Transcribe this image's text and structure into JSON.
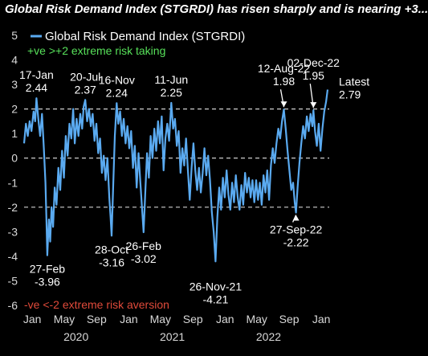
{
  "headline": "Global Risk Demand Index (STGRDI) has risen sharply and is nearing +3...",
  "legend_label": "Global Risk Demand Index (STGRDI)",
  "note_extreme_taking": "+ve >+2 extreme risk taking",
  "note_extreme_aversion": "-ve <-2 extreme risk aversion",
  "colors": {
    "series": "#5aaaf0",
    "background": "#000000",
    "note_taking": "#57e05a",
    "note_aversion": "#e04a3a"
  },
  "chart_data": {
    "type": "line",
    "title": "",
    "xlabel": "",
    "ylabel": "",
    "ylim": [
      -6,
      5
    ],
    "yticks": [
      5,
      4,
      3,
      2,
      1,
      0,
      -1,
      -2,
      -3,
      -4,
      -5,
      -6
    ],
    "xlim": [
      "2019-12-01",
      "2023-01-31"
    ],
    "xticks": [
      {
        "date": "2020-01-01",
        "label": "Jan"
      },
      {
        "date": "2020-05-01",
        "label": "May"
      },
      {
        "date": "2020-09-01",
        "label": "Sep"
      },
      {
        "date": "2021-01-01",
        "label": "Jan"
      },
      {
        "date": "2021-05-01",
        "label": "May"
      },
      {
        "date": "2021-09-01",
        "label": "Sep"
      },
      {
        "date": "2022-01-01",
        "label": "Jan"
      },
      {
        "date": "2022-05-01",
        "label": "May"
      },
      {
        "date": "2022-09-01",
        "label": "Sep"
      },
      {
        "date": "2023-01-01",
        "label": "Jan"
      }
    ],
    "year_labels": [
      {
        "date": "2020-06-15",
        "label": "2020"
      },
      {
        "date": "2021-06-15",
        "label": "2021"
      },
      {
        "date": "2022-06-15",
        "label": "2022"
      }
    ],
    "reference_lines": [
      2,
      0,
      -2
    ],
    "legend": "top-left",
    "grid": false,
    "series": [
      {
        "name": "Global Risk Demand Index (STGRDI)",
        "points": [
          [
            "2019-12-01",
            0.6
          ],
          [
            "2019-12-08",
            1.4
          ],
          [
            "2019-12-15",
            0.9
          ],
          [
            "2019-12-22",
            1.5
          ],
          [
            "2019-12-29",
            1.1
          ],
          [
            "2020-01-06",
            1.9
          ],
          [
            "2020-01-12",
            1.5
          ],
          [
            "2020-01-17",
            2.44
          ],
          [
            "2020-01-24",
            1.6
          ],
          [
            "2020-01-31",
            0.9
          ],
          [
            "2020-02-07",
            1.8
          ],
          [
            "2020-02-14",
            0.4
          ],
          [
            "2020-02-20",
            -1.0
          ],
          [
            "2020-02-24",
            -2.6
          ],
          [
            "2020-02-27",
            -3.96
          ],
          [
            "2020-03-04",
            -2.5
          ],
          [
            "2020-03-09",
            -3.4
          ],
          [
            "2020-03-14",
            -2.0
          ],
          [
            "2020-03-20",
            -2.8
          ],
          [
            "2020-03-26",
            -1.2
          ],
          [
            "2020-04-02",
            -1.9
          ],
          [
            "2020-04-09",
            -0.4
          ],
          [
            "2020-04-16",
            -1.3
          ],
          [
            "2020-04-23",
            0.3
          ],
          [
            "2020-04-30",
            -0.8
          ],
          [
            "2020-05-07",
            0.9
          ],
          [
            "2020-05-14",
            0.1
          ],
          [
            "2020-05-21",
            1.4
          ],
          [
            "2020-05-28",
            0.8
          ],
          [
            "2020-06-04",
            2.0
          ],
          [
            "2020-06-10",
            0.6
          ],
          [
            "2020-06-17",
            1.6
          ],
          [
            "2020-06-24",
            0.9
          ],
          [
            "2020-07-01",
            1.8
          ],
          [
            "2020-07-08",
            1.2
          ],
          [
            "2020-07-14",
            2.1
          ],
          [
            "2020-07-20",
            2.37
          ],
          [
            "2020-07-27",
            1.5
          ],
          [
            "2020-08-03",
            2.0
          ],
          [
            "2020-08-10",
            1.3
          ],
          [
            "2020-08-17",
            1.8
          ],
          [
            "2020-08-24",
            0.7
          ],
          [
            "2020-08-31",
            1.4
          ],
          [
            "2020-09-07",
            0.2
          ],
          [
            "2020-09-14",
            0.8
          ],
          [
            "2020-09-21",
            -0.6
          ],
          [
            "2020-09-28",
            0.1
          ],
          [
            "2020-10-05",
            -0.9
          ],
          [
            "2020-10-12",
            0.0
          ],
          [
            "2020-10-19",
            -1.6
          ],
          [
            "2020-10-24",
            -2.4
          ],
          [
            "2020-10-28",
            -3.16
          ],
          [
            "2020-11-03",
            -1.1
          ],
          [
            "2020-11-09",
            0.9
          ],
          [
            "2020-11-16",
            2.24
          ],
          [
            "2020-11-22",
            1.4
          ],
          [
            "2020-11-29",
            1.9
          ],
          [
            "2020-12-06",
            0.9
          ],
          [
            "2020-12-13",
            1.6
          ],
          [
            "2020-12-20",
            0.6
          ],
          [
            "2020-12-27",
            1.3
          ],
          [
            "2021-01-03",
            0.4
          ],
          [
            "2021-01-10",
            1.1
          ],
          [
            "2021-01-17",
            -0.4
          ],
          [
            "2021-01-24",
            0.5
          ],
          [
            "2021-01-31",
            -1.2
          ],
          [
            "2021-02-07",
            0.2
          ],
          [
            "2021-02-14",
            -1.0
          ],
          [
            "2021-02-20",
            -2.0
          ],
          [
            "2021-02-26",
            -3.02
          ],
          [
            "2021-03-04",
            -1.5
          ],
          [
            "2021-03-11",
            0.2
          ],
          [
            "2021-03-18",
            -0.8
          ],
          [
            "2021-03-25",
            0.9
          ],
          [
            "2021-04-01",
            0.0
          ],
          [
            "2021-04-08",
            1.2
          ],
          [
            "2021-04-15",
            0.3
          ],
          [
            "2021-04-22",
            1.5
          ],
          [
            "2021-04-29",
            0.6
          ],
          [
            "2021-05-06",
            1.7
          ],
          [
            "2021-05-13",
            -0.5
          ],
          [
            "2021-05-20",
            0.8
          ],
          [
            "2021-05-27",
            1.4
          ],
          [
            "2021-06-03",
            0.7
          ],
          [
            "2021-06-11",
            2.25
          ],
          [
            "2021-06-18",
            1.2
          ],
          [
            "2021-06-25",
            1.6
          ],
          [
            "2021-07-02",
            0.5
          ],
          [
            "2021-07-09",
            1.1
          ],
          [
            "2021-07-16",
            -0.6
          ],
          [
            "2021-07-23",
            0.4
          ],
          [
            "2021-07-30",
            -0.3
          ],
          [
            "2021-08-06",
            0.8
          ],
          [
            "2021-08-13",
            -0.5
          ],
          [
            "2021-08-20",
            -1.7
          ],
          [
            "2021-08-27",
            -0.4
          ],
          [
            "2021-09-03",
            0.6
          ],
          [
            "2021-09-10",
            -0.5
          ],
          [
            "2021-09-17",
            -1.3
          ],
          [
            "2021-09-24",
            -0.4
          ],
          [
            "2021-10-01",
            -1.4
          ],
          [
            "2021-10-08",
            -0.6
          ],
          [
            "2021-10-15",
            0.4
          ],
          [
            "2021-10-22",
            -0.7
          ],
          [
            "2021-10-29",
            0.1
          ],
          [
            "2021-11-05",
            -0.9
          ],
          [
            "2021-11-12",
            -2.2
          ],
          [
            "2021-11-19",
            -3.0
          ],
          [
            "2021-11-26",
            -4.21
          ],
          [
            "2021-12-03",
            -2.4
          ],
          [
            "2021-12-10",
            -1.2
          ],
          [
            "2021-12-17",
            -2.1
          ],
          [
            "2021-12-24",
            -0.8
          ],
          [
            "2021-12-31",
            -1.6
          ],
          [
            "2022-01-07",
            -0.5
          ],
          [
            "2022-01-14",
            -1.5
          ],
          [
            "2022-01-21",
            -2.1
          ],
          [
            "2022-01-28",
            -1.0
          ],
          [
            "2022-02-04",
            -1.8
          ],
          [
            "2022-02-11",
            -0.7
          ],
          [
            "2022-02-18",
            -1.6
          ],
          [
            "2022-02-25",
            -2.1
          ],
          [
            "2022-03-04",
            -1.1
          ],
          [
            "2022-03-11",
            -1.9
          ],
          [
            "2022-03-18",
            -0.6
          ],
          [
            "2022-03-25",
            -1.4
          ],
          [
            "2022-04-01",
            -0.8
          ],
          [
            "2022-04-08",
            -1.6
          ],
          [
            "2022-04-15",
            -0.9
          ],
          [
            "2022-04-22",
            -1.8
          ],
          [
            "2022-04-29",
            -0.9
          ],
          [
            "2022-05-06",
            -1.7
          ],
          [
            "2022-05-13",
            -1.0
          ],
          [
            "2022-05-20",
            -1.9
          ],
          [
            "2022-05-27",
            -0.7
          ],
          [
            "2022-06-03",
            -1.4
          ],
          [
            "2022-06-10",
            -0.5
          ],
          [
            "2022-06-17",
            -1.7
          ],
          [
            "2022-06-24",
            -0.3
          ],
          [
            "2022-07-01",
            0.4
          ],
          [
            "2022-07-08",
            -0.2
          ],
          [
            "2022-07-15",
            0.6
          ],
          [
            "2022-07-22",
            1.2
          ],
          [
            "2022-07-29",
            0.8
          ],
          [
            "2022-08-05",
            1.5
          ],
          [
            "2022-08-12",
            1.98
          ],
          [
            "2022-08-19",
            1.2
          ],
          [
            "2022-08-26",
            0.3
          ],
          [
            "2022-09-02",
            -0.5
          ],
          [
            "2022-09-09",
            -1.3
          ],
          [
            "2022-09-16",
            -1.0
          ],
          [
            "2022-09-22",
            -1.8
          ],
          [
            "2022-09-27",
            -2.22
          ],
          [
            "2022-10-03",
            -1.2
          ],
          [
            "2022-10-10",
            -0.2
          ],
          [
            "2022-10-17",
            0.6
          ],
          [
            "2022-10-24",
            1.3
          ],
          [
            "2022-10-31",
            0.8
          ],
          [
            "2022-11-07",
            1.7
          ],
          [
            "2022-11-14",
            1.1
          ],
          [
            "2022-11-21",
            1.8
          ],
          [
            "2022-11-28",
            1.3
          ],
          [
            "2022-12-02",
            1.95
          ],
          [
            "2022-12-08",
            1.1
          ],
          [
            "2022-12-15",
            0.5
          ],
          [
            "2022-12-22",
            1.4
          ],
          [
            "2022-12-29",
            0.3
          ],
          [
            "2023-01-05",
            1.2
          ],
          [
            "2023-01-12",
            1.9
          ],
          [
            "2023-01-19",
            2.3
          ],
          [
            "2023-01-25",
            2.79
          ]
        ]
      }
    ],
    "annotations": [
      {
        "id": "ann-jan20",
        "date_label": "17-Jan",
        "value_label": "2.44",
        "date": "2020-01-17",
        "value": 2.44,
        "side": "above"
      },
      {
        "id": "ann-feb20",
        "date_label": "27-Feb",
        "value_label": "-3.96",
        "date": "2020-02-27",
        "value": -3.96,
        "side": "below"
      },
      {
        "id": "ann-jul20",
        "date_label": "20-Jul",
        "value_label": "2.37",
        "date": "2020-07-20",
        "value": 2.37,
        "side": "above"
      },
      {
        "id": "ann-oct20",
        "date_label": "28-Oct",
        "value_label": "-3.16",
        "date": "2020-10-28",
        "value": -3.16,
        "side": "below"
      },
      {
        "id": "ann-nov20",
        "date_label": "16-Nov",
        "value_label": "2.24",
        "date": "2020-11-16",
        "value": 2.24,
        "side": "above"
      },
      {
        "id": "ann-feb21",
        "date_label": "26-Feb",
        "value_label": "-3.02",
        "date": "2021-02-26",
        "value": -3.02,
        "side": "below"
      },
      {
        "id": "ann-jun21",
        "date_label": "11-Jun",
        "value_label": "2.25",
        "date": "2021-06-11",
        "value": 2.25,
        "side": "above"
      },
      {
        "id": "ann-nov21",
        "date_label": "26-Nov-21",
        "value_label": "-4.21",
        "date": "2021-11-26",
        "value": -4.21,
        "side": "below"
      },
      {
        "id": "ann-aug22",
        "date_label": "12-Aug-22",
        "value_label": "1.98",
        "date": "2022-08-12",
        "value": 1.98,
        "side": "above",
        "arrow": true
      },
      {
        "id": "ann-sep22",
        "date_label": "27-Sep-22",
        "value_label": "-2.22",
        "date": "2022-09-27",
        "value": -2.22,
        "side": "below",
        "arrow": true
      },
      {
        "id": "ann-dec22",
        "date_label": "02-Dec-22",
        "value_label": "1.95",
        "date": "2022-12-02",
        "value": 1.95,
        "side": "above",
        "arrow": true
      },
      {
        "id": "ann-latest",
        "date_label": "Latest",
        "value_label": "2.79",
        "date": "2023-01-25",
        "value": 2.79,
        "side": "right"
      }
    ]
  }
}
